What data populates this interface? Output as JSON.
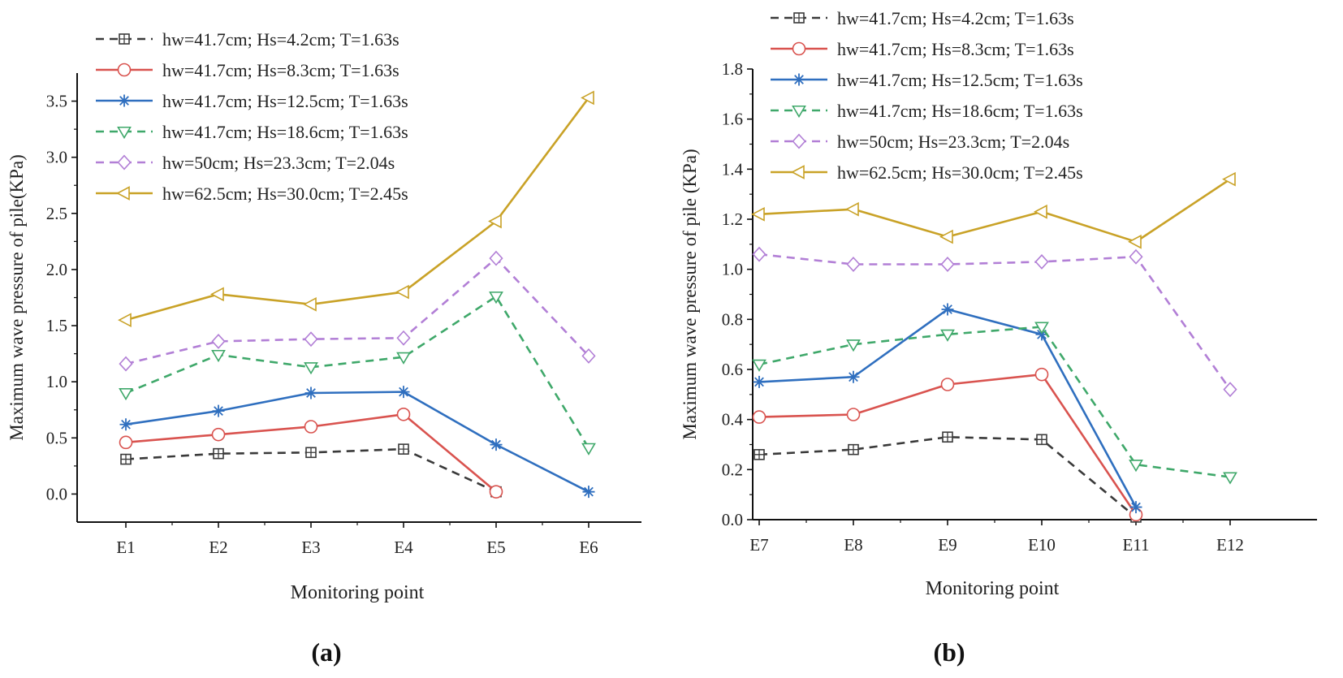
{
  "chart_data": [
    {
      "type": "line",
      "panel_label": "(a)",
      "xlabel": "Monitoring point",
      "ylabel": "Maximum wave pressure of pile(KPa)",
      "categories": [
        "E1",
        "E2",
        "E3",
        "E4",
        "E5",
        "E6"
      ],
      "ylim": [
        -0.25,
        3.75
      ],
      "yticks": [
        0.0,
        0.5,
        1.0,
        1.5,
        2.0,
        2.5,
        3.0,
        3.5
      ],
      "ytick_labels": [
        "0.0",
        "0.5",
        "1.0",
        "1.5",
        "2.0",
        "2.5",
        "3.0",
        "3.5"
      ],
      "legend_position": "top-left",
      "series": [
        {
          "name": "hw=41.7cm; Hs=4.2cm; T=1.63s",
          "color": "#3a3a3a",
          "dash": "dashed",
          "marker": "square-cross",
          "values": [
            0.31,
            0.36,
            0.37,
            0.4,
            0.02,
            null
          ]
        },
        {
          "name": "hw=41.7cm; Hs=8.3cm; T=1.63s",
          "color": "#d9534f",
          "dash": "solid",
          "marker": "circle",
          "values": [
            0.46,
            0.53,
            0.6,
            0.71,
            0.02,
            null
          ]
        },
        {
          "name": "hw=41.7cm; Hs=12.5cm; T=1.63s",
          "color": "#2f6fbf",
          "dash": "solid",
          "marker": "star",
          "values": [
            0.62,
            0.74,
            0.9,
            0.91,
            0.44,
            0.02
          ]
        },
        {
          "name": "hw=41.7cm; Hs=18.6cm; T=1.63s",
          "color": "#3fa86a",
          "dash": "dashed",
          "marker": "triangle-down",
          "values": [
            0.9,
            1.24,
            1.13,
            1.22,
            1.76,
            0.41
          ]
        },
        {
          "name": "hw=50cm; Hs=23.3cm; T=2.04s",
          "color": "#b27fd6",
          "dash": "dashed",
          "marker": "diamond",
          "values": [
            1.16,
            1.36,
            1.38,
            1.39,
            2.1,
            1.23
          ]
        },
        {
          "name": "hw=62.5cm; Hs=30.0cm; T=2.45s",
          "color": "#c9a227",
          "dash": "solid",
          "marker": "triangle-left",
          "values": [
            1.55,
            1.78,
            1.69,
            1.8,
            2.43,
            3.53
          ]
        }
      ]
    },
    {
      "type": "line",
      "panel_label": "(b)",
      "xlabel": "Monitoring point",
      "ylabel": "Maximum wave pressure of pile (KPa)",
      "categories": [
        "E7",
        "E8",
        "E9",
        "E10",
        "E11",
        "E12"
      ],
      "ylim": [
        0.0,
        1.8
      ],
      "yticks": [
        0.0,
        0.2,
        0.4,
        0.6,
        0.8,
        1.0,
        1.2,
        1.4,
        1.6,
        1.8
      ],
      "ytick_labels": [
        "0.0",
        "0.2",
        "0.4",
        "0.6",
        "0.8",
        "1.0",
        "1.2",
        "1.4",
        "1.6",
        "1.8"
      ],
      "legend_position": "top-left",
      "series": [
        {
          "name": "hw=41.7cm; Hs=4.2cm; T=1.63s",
          "color": "#3a3a3a",
          "dash": "dashed",
          "marker": "square-cross",
          "values": [
            0.26,
            0.28,
            0.33,
            0.32,
            0.01,
            null
          ]
        },
        {
          "name": "hw=41.7cm; Hs=8.3cm; T=1.63s",
          "color": "#d9534f",
          "dash": "solid",
          "marker": "circle",
          "values": [
            0.41,
            0.42,
            0.54,
            0.58,
            0.02,
            null
          ]
        },
        {
          "name": "hw=41.7cm; Hs=12.5cm; T=1.63s",
          "color": "#2f6fbf",
          "dash": "solid",
          "marker": "star",
          "values": [
            0.55,
            0.57,
            0.84,
            0.74,
            0.05,
            null
          ]
        },
        {
          "name": "hw=41.7cm; Hs=18.6cm; T=1.63s",
          "color": "#3fa86a",
          "dash": "dashed",
          "marker": "triangle-down",
          "values": [
            0.62,
            0.7,
            0.74,
            0.77,
            0.22,
            0.17
          ]
        },
        {
          "name": "hw=50cm; Hs=23.3cm; T=2.04s",
          "color": "#b27fd6",
          "dash": "dashed",
          "marker": "diamond",
          "values": [
            1.06,
            1.02,
            1.02,
            1.03,
            1.05,
            0.52
          ]
        },
        {
          "name": "hw=62.5cm; Hs=30.0cm; T=2.45s",
          "color": "#c9a227",
          "dash": "solid",
          "marker": "triangle-left",
          "values": [
            1.22,
            1.24,
            1.13,
            1.23,
            1.11,
            1.36
          ]
        }
      ]
    }
  ]
}
